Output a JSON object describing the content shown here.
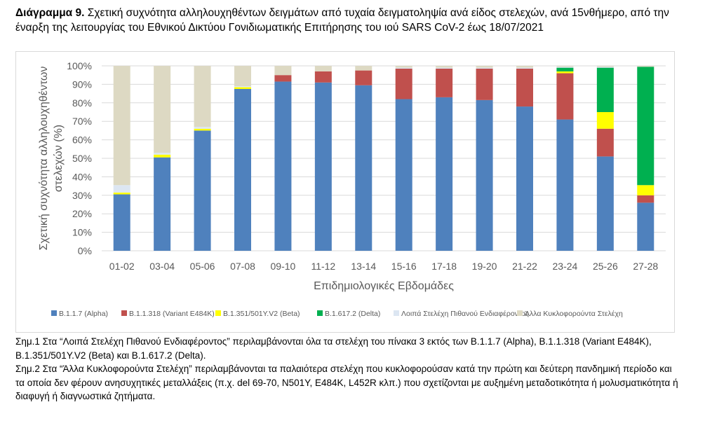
{
  "caption": {
    "label": "Διάγραμμα 9.",
    "text": "Σχετική συχνότητα αλληλουχηθέντων δειγμάτων από τυχαία δειγματοληψία ανά είδος στελεχών, ανά 15νθήμερο, από την έναρξη της λειτουργίας του Εθνικού Δικτύου Γονιδιωματικής Επιτήρησης του ιού SARS CoV-2 έως 18/07/2021"
  },
  "notes": {
    "note1": "Σημ.1 Στα “Λοιπά Στελέχη Πιθανού Ενδιαφέροντος” περιλαμβάνονται όλα τα στελέχη του πίνακα 3 εκτός των B.1.1.7 (Alpha), B.1.1.318 (Variant E484K), B.1.351/501Y.V2 (Beta) και B.1.617.2 (Delta).",
    "note2": "Σημ.2 Στα “Άλλα Κυκλοφορούντα Στελέχη” περιλαμβάνονται τα παλαιότερα στελέχη που κυκλοφορούσαν κατά την πρώτη και δεύτερη πανδημική περίοδο και τα οποία δεν φέρουν ανησυχητικές μεταλλάξεις (π.χ. del 69-70, N501Y, E484K, L452R κλπ.) που σχετίζονται με αυξημένη μεταδοτικότητα ή μολυσματικότητα ή διαφυγή ή διαγνωστικά ζητήματα."
  },
  "chart_data": {
    "type": "bar",
    "stacked": true,
    "title": "",
    "xlabel": "Επιδημιολογικές Εβδομάδες",
    "ylabel": "Σχετική συχνότητα αλληλουχηθέντων στελεχών (%)",
    "ylim": [
      0,
      100
    ],
    "yticks": [
      "0%",
      "10%",
      "20%",
      "30%",
      "40%",
      "50%",
      "60%",
      "70%",
      "80%",
      "90%",
      "100%"
    ],
    "grid": true,
    "legend_position": "bottom",
    "categories": [
      "01-02",
      "03-04",
      "05-06",
      "07-08",
      "09-10",
      "11-12",
      "13-14",
      "15-16",
      "17-18",
      "19-20",
      "21-22",
      "23-24",
      "25-26",
      "27-28"
    ],
    "series": [
      {
        "name": "B.1.1.7 (Alpha)",
        "color": "#4f81bd",
        "values": [
          30.5,
          50.5,
          65,
          87.5,
          91.5,
          91,
          89.5,
          82,
          83,
          81.5,
          78,
          71,
          51,
          26
        ]
      },
      {
        "name": "B.1.1.318 (Variant E484K)",
        "color": "#c0504d",
        "values": [
          0,
          0,
          0,
          0,
          3.5,
          6,
          8,
          16.5,
          15.5,
          17,
          20.5,
          25,
          15,
          4
        ]
      },
      {
        "name": "B.1.351/501Y.V2 (Beta)",
        "color": "#ffff00",
        "values": [
          1,
          1.5,
          1,
          1,
          0,
          0,
          0,
          0,
          0,
          0,
          0,
          1,
          9,
          5.5
        ]
      },
      {
        "name": "B.1.617.2 (Delta)",
        "color": "#00b050",
        "values": [
          0,
          0,
          0,
          0,
          0,
          0,
          0,
          0,
          0,
          0,
          0,
          2,
          24,
          64
        ]
      },
      {
        "name": "Λοιπά Στελέχη Πιθανού Ενδιαφέροντος",
        "color": "#dce6f2",
        "values": [
          4,
          1,
          1,
          0.5,
          0,
          0,
          0,
          0.5,
          0.5,
          0.5,
          0.5,
          0.5,
          0.5,
          0
        ]
      },
      {
        "name": "Άλλα Κυκλοφορούντα Στελέχη",
        "color": "#ddd9c3",
        "values": [
          64.5,
          47,
          33,
          11,
          5,
          3,
          2.5,
          1,
          1,
          1,
          1,
          0.5,
          0.5,
          0.5
        ]
      }
    ]
  }
}
